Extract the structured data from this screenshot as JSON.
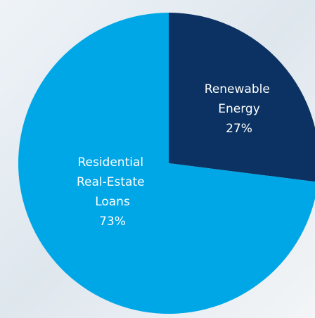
{
  "chart_data": {
    "type": "pie",
    "categories": [
      "Renewable Energy",
      "Residential Real-Estate Loans"
    ],
    "values": [
      27,
      73
    ],
    "value_labels": [
      "27%",
      "73%"
    ],
    "colors": [
      "#0b3262",
      "#00a7e7"
    ]
  }
}
